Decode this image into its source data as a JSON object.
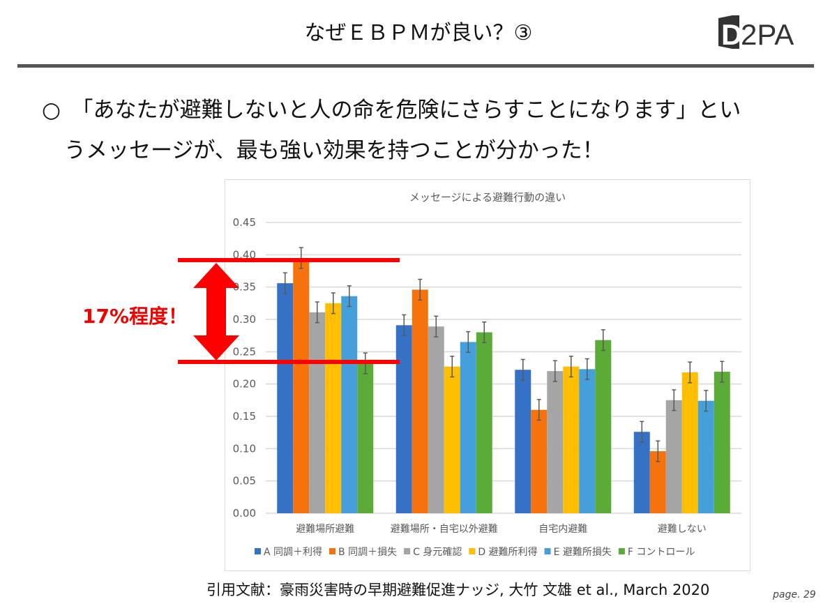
{
  "header": {
    "title": "なぜＥＢＰＭが良い？③",
    "logo_text": "D2PA"
  },
  "body": {
    "line1": "○　「あなたが避難しないと人の命を危険にさらすことになります」とい",
    "line2": "うメッセージが、最も強い効果を持つことが分かった！"
  },
  "annotation": {
    "label": "17%程度！",
    "color": "#ff0000"
  },
  "citation": "引用文献：豪雨災害時の早期避難促進ナッジ, 大竹 文雄 et al., March 2020",
  "page_number": "page. 29",
  "chart_data": {
    "type": "bar",
    "title": "メッセージによる避難行動の違い",
    "categories": [
      "避難場所避難",
      "避難場所・自宅以外避難",
      "自宅内避難",
      "避難しない"
    ],
    "ylim": [
      0,
      0.45
    ],
    "yticks": [
      "0.00",
      "0.05",
      "0.10",
      "0.15",
      "0.20",
      "0.25",
      "0.30",
      "0.35",
      "0.40",
      "0.45"
    ],
    "grid": true,
    "legend": "bottom",
    "error_bars": true,
    "series": [
      {
        "name": "A 同調＋利得",
        "color": "#3572c6",
        "values": [
          0.356,
          0.291,
          0.222,
          0.126
        ]
      },
      {
        "name": "B 同調＋損失",
        "color": "#f6720d",
        "values": [
          0.395,
          0.346,
          0.16,
          0.096
        ]
      },
      {
        "name": "C 身元確認",
        "color": "#a5a5a5",
        "values": [
          0.311,
          0.289,
          0.22,
          0.175
        ]
      },
      {
        "name": "D 避難所利得",
        "color": "#ffbf00",
        "values": [
          0.325,
          0.227,
          0.227,
          0.218
        ]
      },
      {
        "name": "E 避難所損失",
        "color": "#459fdb",
        "values": [
          0.336,
          0.265,
          0.223,
          0.174
        ]
      },
      {
        "name": "F コントロール",
        "color": "#5aab37",
        "values": [
          0.232,
          0.28,
          0.268,
          0.219
        ]
      }
    ]
  }
}
